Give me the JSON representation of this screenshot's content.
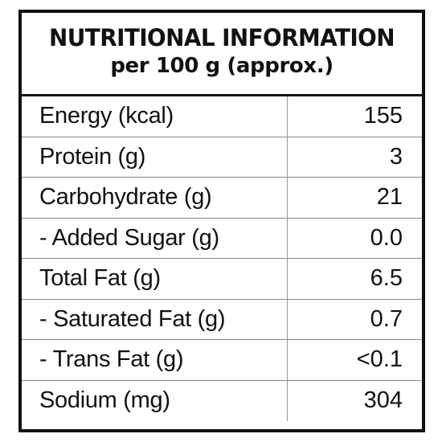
{
  "header": {
    "title": "NUTRITIONAL INFORMATION",
    "subtitle": "per 100 g (approx.)"
  },
  "rows": [
    {
      "name": "Energy (kcal)",
      "value": "155"
    },
    {
      "name": "Protein (g)",
      "value": "3"
    },
    {
      "name": "Carbohydrate (g)",
      "value": "21"
    },
    {
      "name": "- Added Sugar (g)",
      "value": "0.0"
    },
    {
      "name": "Total Fat (g)",
      "value": "6.5"
    },
    {
      "name": "- Saturated Fat (g)",
      "value": "0.7"
    },
    {
      "name": "- Trans Fat (g)",
      "value": "<0.1"
    },
    {
      "name": "Sodium (mg)",
      "value": "304"
    }
  ]
}
